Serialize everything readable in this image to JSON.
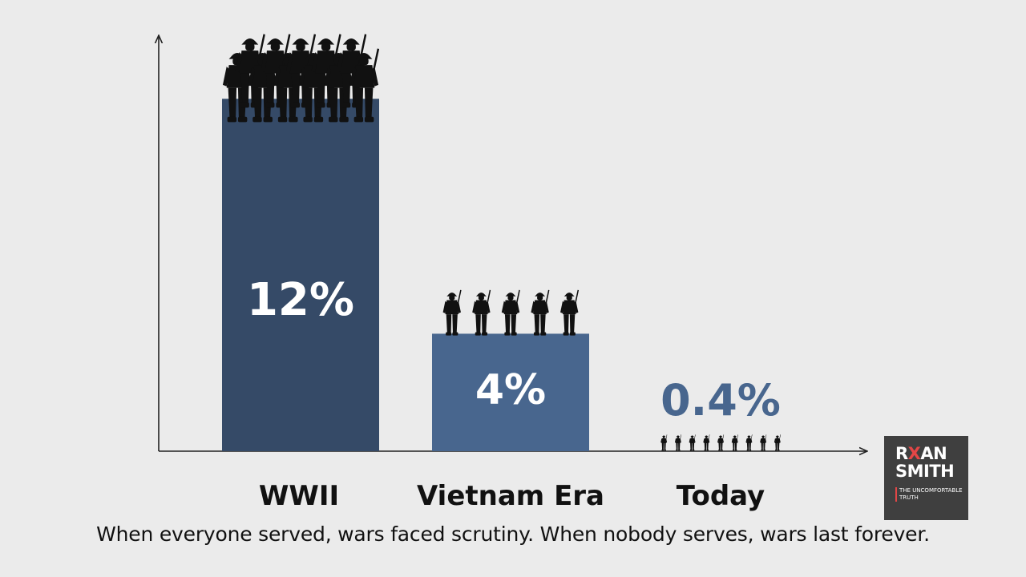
{
  "chart_data": {
    "type": "bar",
    "categories": [
      "WWII",
      "Vietnam Era",
      "Today"
    ],
    "values": [
      12,
      4,
      0.4
    ],
    "value_labels": [
      "12%",
      "4%",
      "0.4%"
    ],
    "unit": "%",
    "title": "",
    "xlabel": "",
    "ylabel": "",
    "ylim": [
      0,
      14
    ],
    "grid": false,
    "legend": "none",
    "soldier_icons_per_bar": [
      11,
      5,
      9
    ],
    "colors": {
      "bar_wwii": "#354a67",
      "bar_vietnam": "#48668e",
      "today_label": "#48668e",
      "axis": "#222222",
      "silhouette": "#111111"
    }
  },
  "caption": "When everyone served, wars faced scrutiny. When nobody serves, wars last forever.",
  "logo": {
    "line1_prefix": "R",
    "line1_accent": "X",
    "line1_suffix": "AN",
    "line2": "SMITH",
    "tagline": "THE UNCOMFORTABLE TRUTH",
    "accent_color": "#e34646",
    "background": "#3f3f3f"
  }
}
